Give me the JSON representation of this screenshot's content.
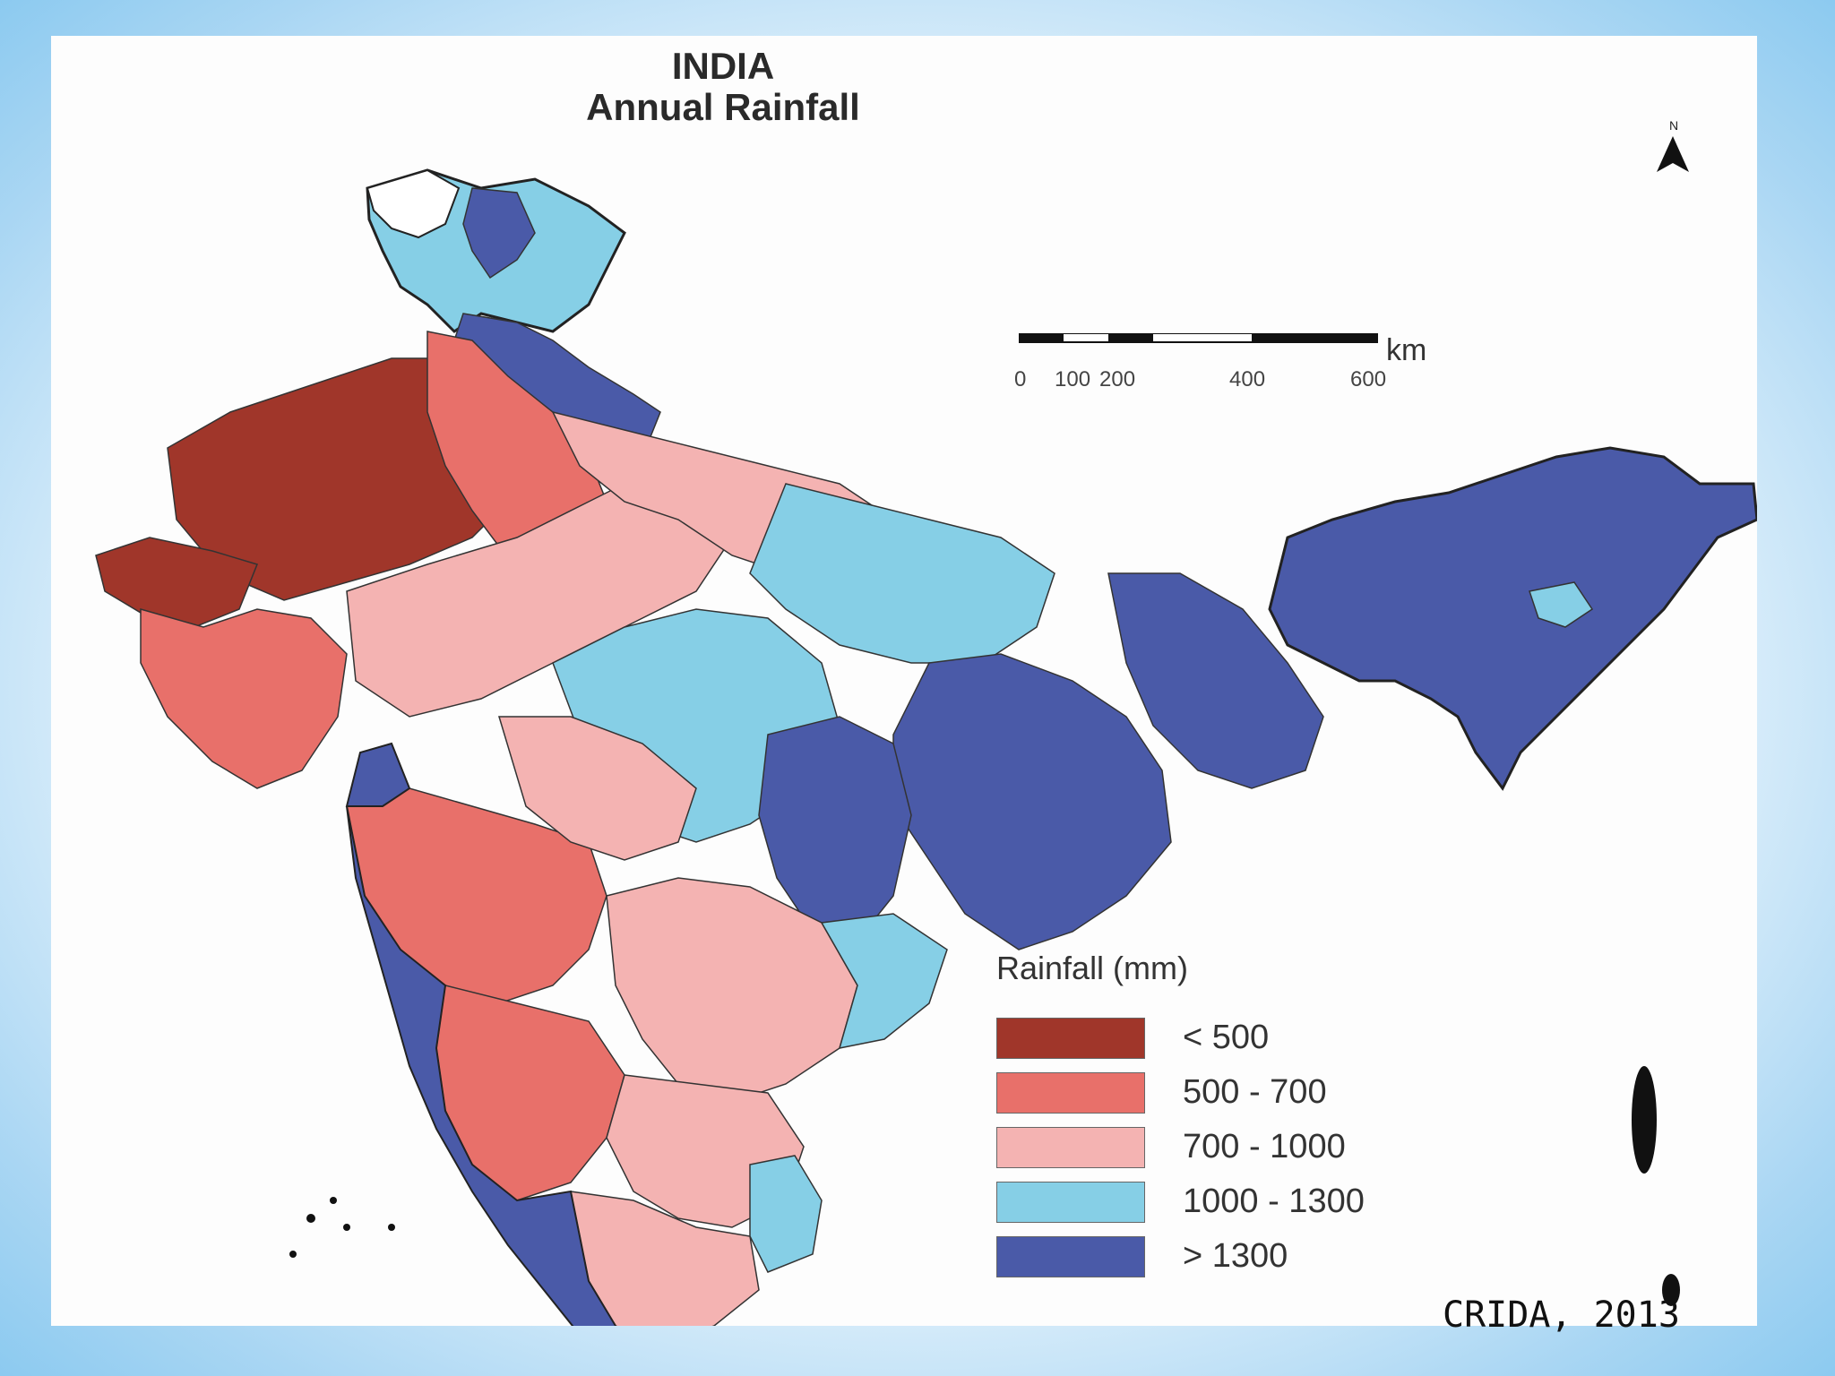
{
  "map": {
    "title_line1": "INDIA",
    "title_line2": "Annual Rainfall",
    "north_label": "N",
    "scale": {
      "unit": "km",
      "ticks": [
        "0",
        "100",
        "200",
        "400",
        "600"
      ]
    },
    "legend": {
      "title": "Rainfall (mm)",
      "items": [
        {
          "label": "< 500",
          "color": "#a0362a"
        },
        {
          "label": "500 - 700",
          "color": "#e8706a"
        },
        {
          "label": "700 - 1000",
          "color": "#f4b3b2"
        },
        {
          "label": "1000 - 1300",
          "color": "#86cfe6"
        },
        {
          "label": "> 1300",
          "color": "#4a5aa8"
        }
      ]
    }
  },
  "source": "CRIDA, 2013"
}
